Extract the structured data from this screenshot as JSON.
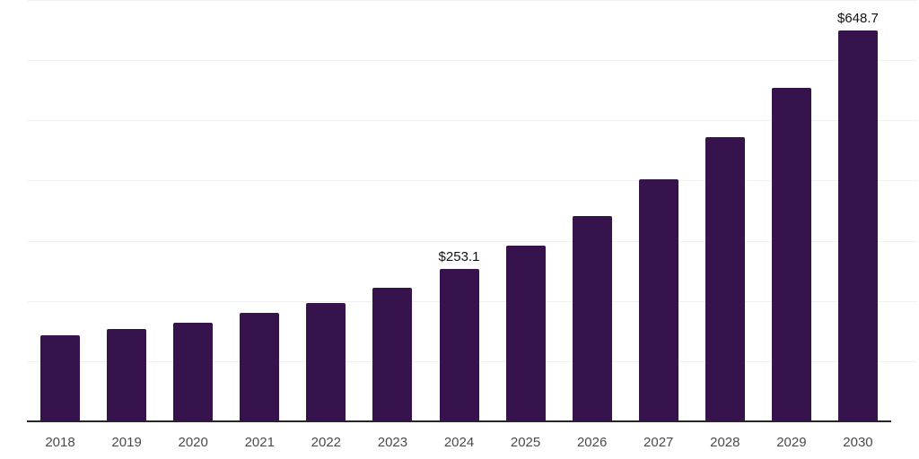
{
  "chart_data": {
    "type": "bar",
    "title": "",
    "xlabel": "",
    "ylabel": "",
    "categories": [
      "2018",
      "2019",
      "2020",
      "2021",
      "2022",
      "2023",
      "2024",
      "2025",
      "2026",
      "2027",
      "2028",
      "2029",
      "2030"
    ],
    "values": [
      142.5,
      153.0,
      163.9,
      179.9,
      197.3,
      221.2,
      253.1,
      291.8,
      341.5,
      402.2,
      472.4,
      554.0,
      648.7
    ],
    "data_labels": [
      "",
      "",
      "",
      "",
      "",
      "",
      "$253.1",
      "",
      "",
      "",
      "",
      "",
      "$648.7"
    ],
    "ylim": [
      0,
      700
    ],
    "gridline_interval": 100,
    "grid": true,
    "legend": false,
    "colors": {
      "bar": "#36134D",
      "grid_line": "#F0F0F0",
      "axis_line": "#262626",
      "tick_label": "#4A4A4A",
      "data_label": "#121212",
      "background": "#FFFFFF"
    }
  }
}
